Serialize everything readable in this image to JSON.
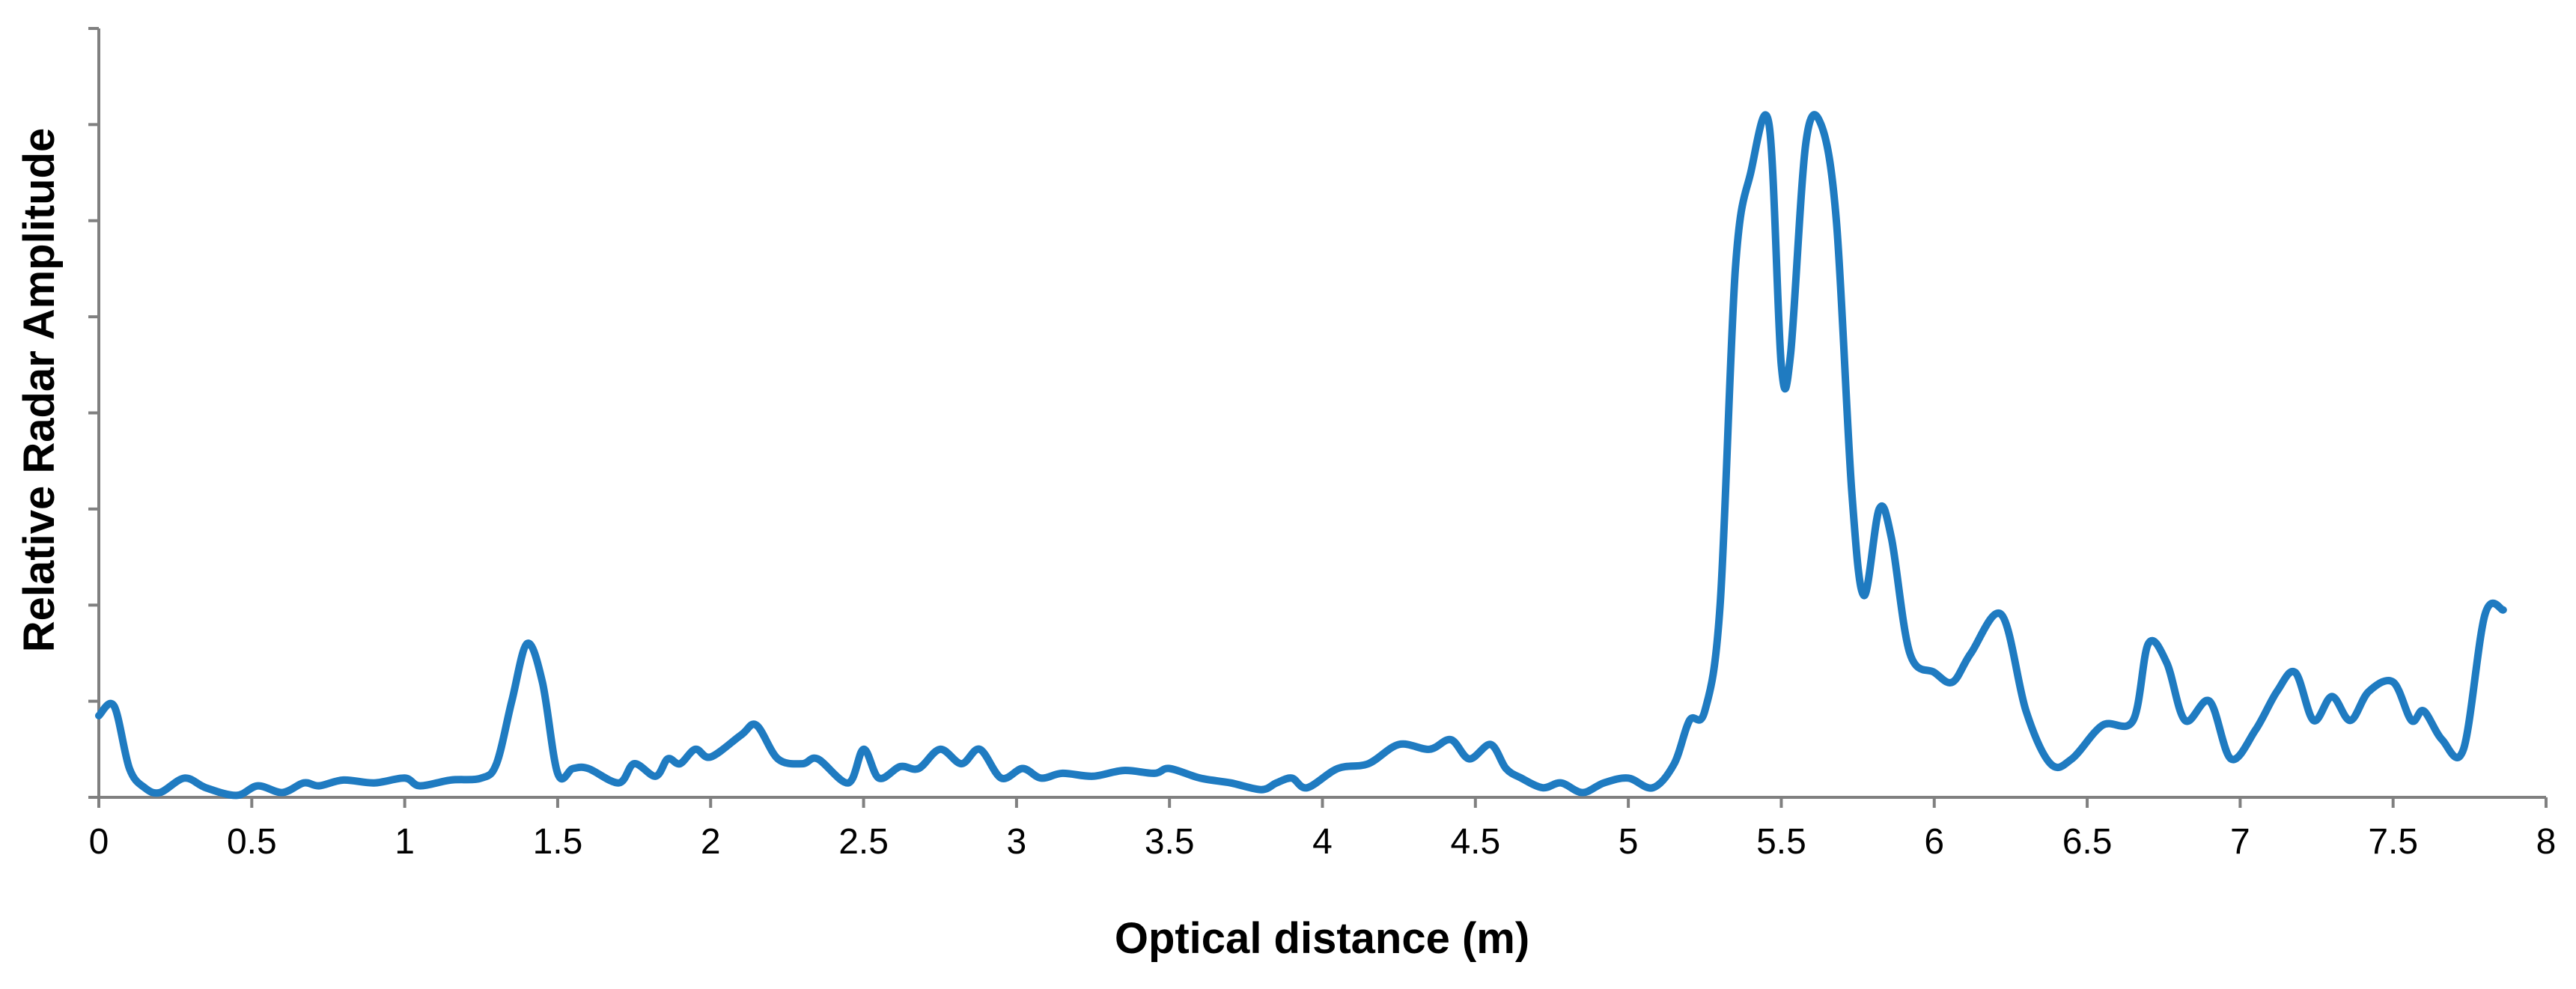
{
  "chart_data": {
    "type": "line",
    "title": "",
    "xlabel": "Optical distance (m)",
    "ylabel": "Relative Radar Amplitude",
    "xlim": [
      0,
      8
    ],
    "ylim": [
      0,
      8
    ],
    "x_ticks": [
      "0",
      "0.5",
      "1",
      "1.5",
      "2",
      "2.5",
      "3",
      "3.5",
      "4",
      "4.5",
      "5",
      "5.5",
      "6",
      "6.5",
      "7",
      "7.5",
      "8"
    ],
    "y_tick_labels_shown": false,
    "grid": false,
    "legend": "none",
    "series": [
      {
        "color": "#1f7bc1",
        "x": [
          0.0,
          0.05,
          0.1,
          0.15,
          0.2,
          0.28,
          0.35,
          0.45,
          0.52,
          0.6,
          0.67,
          0.72,
          0.8,
          0.9,
          1.0,
          1.05,
          1.15,
          1.25,
          1.3,
          1.35,
          1.4,
          1.45,
          1.5,
          1.55,
          1.6,
          1.7,
          1.75,
          1.82,
          1.86,
          1.9,
          1.95,
          2.0,
          2.1,
          2.15,
          2.22,
          2.3,
          2.35,
          2.45,
          2.5,
          2.55,
          2.62,
          2.68,
          2.75,
          2.82,
          2.88,
          2.95,
          3.02,
          3.08,
          3.15,
          3.25,
          3.35,
          3.45,
          3.5,
          3.6,
          3.7,
          3.8,
          3.85,
          3.9,
          3.95,
          4.05,
          4.15,
          4.25,
          4.35,
          4.42,
          4.48,
          4.55,
          4.6,
          4.65,
          4.72,
          4.78,
          4.85,
          4.92,
          5.0,
          5.08,
          5.15,
          5.2,
          5.25,
          5.3,
          5.35,
          5.4,
          5.46,
          5.5,
          5.53,
          5.58,
          5.63,
          5.68,
          5.73,
          5.77,
          5.82,
          5.86,
          5.92,
          6.0,
          6.06,
          6.12,
          6.22,
          6.3,
          6.38,
          6.45,
          6.55,
          6.65,
          6.7,
          6.76,
          6.82,
          6.9,
          6.97,
          7.05,
          7.12,
          7.18,
          7.24,
          7.3,
          7.36,
          7.42,
          7.5,
          7.56,
          7.6,
          7.66,
          7.73,
          7.8,
          7.86
        ],
        "y": [
          0.85,
          0.95,
          0.3,
          0.1,
          0.05,
          0.2,
          0.1,
          0.02,
          0.12,
          0.05,
          0.15,
          0.12,
          0.18,
          0.15,
          0.2,
          0.12,
          0.18,
          0.2,
          0.35,
          1.0,
          1.6,
          1.2,
          0.25,
          0.3,
          0.3,
          0.15,
          0.35,
          0.22,
          0.4,
          0.35,
          0.5,
          0.42,
          0.65,
          0.75,
          0.4,
          0.35,
          0.4,
          0.15,
          0.5,
          0.2,
          0.32,
          0.3,
          0.5,
          0.35,
          0.5,
          0.2,
          0.3,
          0.2,
          0.25,
          0.22,
          0.28,
          0.25,
          0.3,
          0.2,
          0.15,
          0.08,
          0.15,
          0.2,
          0.1,
          0.3,
          0.35,
          0.55,
          0.5,
          0.6,
          0.4,
          0.55,
          0.3,
          0.2,
          0.1,
          0.15,
          0.05,
          0.15,
          0.2,
          0.1,
          0.35,
          0.8,
          0.9,
          2.0,
          5.5,
          6.5,
          7.0,
          4.5,
          4.6,
          6.8,
          7.0,
          6.0,
          3.2,
          2.1,
          3.0,
          2.7,
          1.5,
          1.3,
          1.2,
          1.5,
          1.9,
          0.9,
          0.35,
          0.4,
          0.75,
          0.8,
          1.6,
          1.4,
          0.8,
          1.0,
          0.4,
          0.7,
          1.1,
          1.3,
          0.8,
          1.05,
          0.8,
          1.1,
          1.2,
          0.8,
          0.9,
          0.6,
          0.5,
          1.9,
          1.95
        ]
      }
    ]
  }
}
